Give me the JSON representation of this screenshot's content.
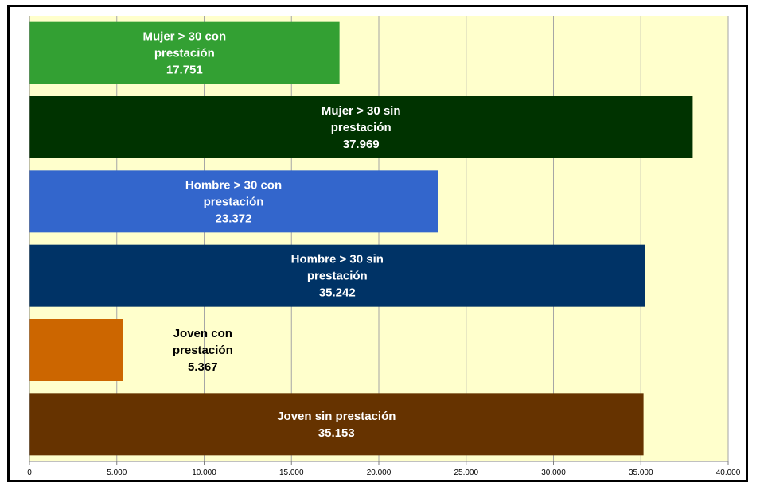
{
  "chart_data": {
    "type": "bar",
    "orientation": "horizontal",
    "xlim": [
      0,
      40000
    ],
    "grid": true,
    "legend": "none",
    "plot_background": "#ffffcc",
    "ticks": [
      "0",
      "5.000",
      "10.000",
      "15.000",
      "20.000",
      "25.000",
      "30.000",
      "35.000",
      "40.000"
    ],
    "tick_values": [
      0,
      5000,
      10000,
      15000,
      20000,
      25000,
      30000,
      35000,
      40000
    ],
    "bars": [
      {
        "lines": [
          "Mujer > 30 con",
          "prestación",
          "17.751"
        ],
        "value": 17751,
        "color": "#33a033",
        "label_color": "#ffffff",
        "label_position": "inside"
      },
      {
        "lines": [
          "Mujer > 30 sin",
          "prestación",
          "37.969"
        ],
        "value": 37969,
        "color": "#003300",
        "label_color": "#ffffff",
        "label_position": "inside"
      },
      {
        "lines": [
          "Hombre > 30 con",
          "prestación",
          "23.372"
        ],
        "value": 23372,
        "color": "#3366cc",
        "label_color": "#ffffff",
        "label_position": "inside"
      },
      {
        "lines": [
          "Hombre > 30 sin",
          "prestación",
          "35.242"
        ],
        "value": 35242,
        "color": "#003366",
        "label_color": "#ffffff",
        "label_position": "inside"
      },
      {
        "lines": [
          "Joven con",
          "prestación",
          "5.367"
        ],
        "value": 5367,
        "color": "#cc6600",
        "label_color": "#000000",
        "label_position": "outside"
      },
      {
        "lines": [
          "Joven sin prestación",
          "35.153"
        ],
        "value": 35153,
        "color": "#663300",
        "label_color": "#ffffff",
        "label_position": "inside"
      }
    ]
  }
}
